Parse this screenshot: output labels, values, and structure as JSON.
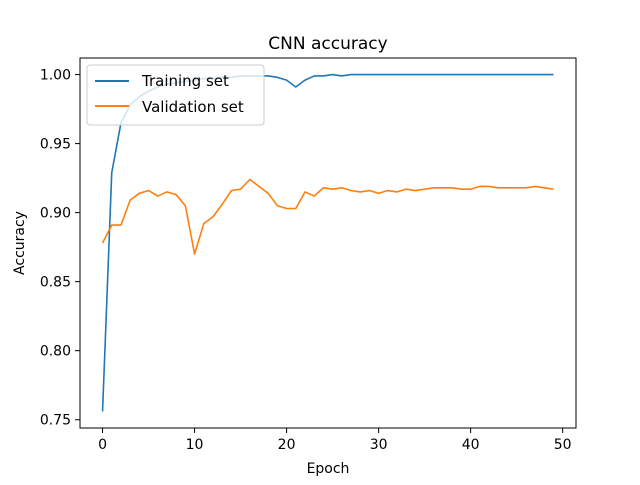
{
  "chart_data": {
    "type": "line",
    "title": "CNN accuracy",
    "xlabel": "Epoch",
    "ylabel": "Accuracy",
    "xlim": [
      -2.45,
      51.45
    ],
    "ylim": [
      0.744,
      1.012
    ],
    "xticks": [
      0,
      10,
      20,
      30,
      40,
      50
    ],
    "yticks": [
      0.75,
      0.8,
      0.85,
      0.9,
      0.95,
      1.0
    ],
    "ytick_labels": [
      "0.75",
      "0.80",
      "0.85",
      "0.90",
      "0.95",
      "1.00"
    ],
    "grid": false,
    "legend_position": "top-left",
    "x": [
      0,
      1,
      2,
      3,
      4,
      5,
      6,
      7,
      8,
      9,
      10,
      11,
      12,
      13,
      14,
      15,
      16,
      17,
      18,
      19,
      20,
      21,
      22,
      23,
      24,
      25,
      26,
      27,
      28,
      29,
      30,
      31,
      32,
      33,
      34,
      35,
      36,
      37,
      38,
      39,
      40,
      41,
      42,
      43,
      44,
      45,
      46,
      47,
      48,
      49
    ],
    "series": [
      {
        "name": "Training set",
        "color": "#1f77b4",
        "values": [
          0.756,
          0.929,
          0.965,
          0.978,
          0.984,
          0.988,
          0.991,
          0.993,
          0.994,
          0.995,
          0.996,
          0.997,
          0.997,
          0.998,
          0.998,
          0.999,
          0.999,
          0.999,
          0.999,
          0.998,
          0.996,
          0.991,
          0.996,
          0.999,
          0.999,
          1.0,
          0.999,
          1.0,
          1.0,
          1.0,
          1.0,
          1.0,
          1.0,
          1.0,
          1.0,
          1.0,
          1.0,
          1.0,
          1.0,
          1.0,
          1.0,
          1.0,
          1.0,
          1.0,
          1.0,
          1.0,
          1.0,
          1.0,
          1.0,
          1.0
        ]
      },
      {
        "name": "Validation set",
        "color": "#ff7f0e",
        "values": [
          0.878,
          0.891,
          0.891,
          0.909,
          0.914,
          0.916,
          0.912,
          0.915,
          0.913,
          0.905,
          0.87,
          0.892,
          0.897,
          0.906,
          0.916,
          0.917,
          0.924,
          0.919,
          0.914,
          0.905,
          0.903,
          0.903,
          0.915,
          0.912,
          0.918,
          0.917,
          0.918,
          0.916,
          0.915,
          0.916,
          0.914,
          0.916,
          0.915,
          0.917,
          0.916,
          0.917,
          0.918,
          0.918,
          0.918,
          0.917,
          0.917,
          0.919,
          0.919,
          0.918,
          0.918,
          0.918,
          0.918,
          0.919,
          0.918,
          0.917
        ]
      }
    ]
  }
}
